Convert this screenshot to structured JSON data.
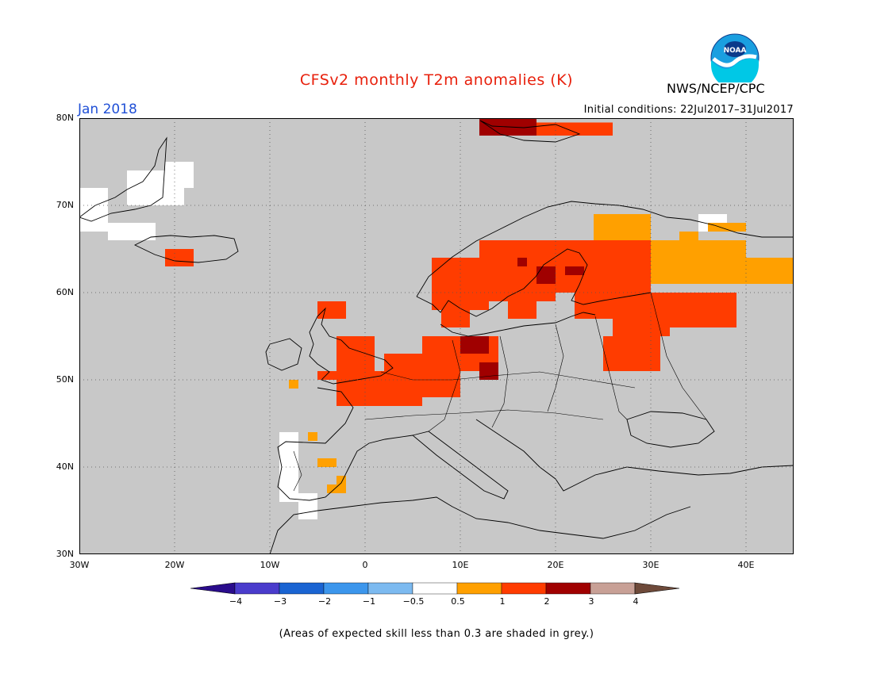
{
  "header": {
    "title": "CFSv2 monthly T2m anomalies (K)",
    "org": "NWS/NCEP/CPC",
    "month": "Jan 2018",
    "initial_conditions": "Initial conditions: 22Jul2017–31Jul2017",
    "logo_text": "NOAA"
  },
  "colors": {
    "title": "#e8200c",
    "month": "#1f4fd6",
    "ocean_land_grey": "#c8c8c8",
    "low_skill_white": "#ffffff"
  },
  "axes": {
    "lat_labels": [
      "80N",
      "70N",
      "60N",
      "50N",
      "40N",
      "30N"
    ],
    "lon_labels": [
      "30W",
      "20W",
      "10W",
      "0",
      "10E",
      "20E",
      "30E",
      "40E"
    ],
    "lon_range": [
      -30,
      45
    ],
    "lat_range": [
      30,
      80
    ],
    "grid": "dotted"
  },
  "colorbar": {
    "labels": [
      "−4",
      "−3",
      "−2",
      "−1",
      "−0.5",
      "0.5",
      "1",
      "2",
      "3",
      "4"
    ],
    "bins": [
      {
        "range": "< -4",
        "color": "#2a0c8c"
      },
      {
        "range": "-4 to -3",
        "color": "#4a3ccc"
      },
      {
        "range": "-3 to -2",
        "color": "#1a64d2"
      },
      {
        "range": "-2 to -1",
        "color": "#3c96ec"
      },
      {
        "range": "-1 to -0.5",
        "color": "#7cbaf0"
      },
      {
        "range": "-0.5 to 0.5",
        "color": "#ffffff"
      },
      {
        "range": "0.5 to 1",
        "color": "#ffa000"
      },
      {
        "range": "1 to 2",
        "color": "#ff3c00"
      },
      {
        "range": "2 to 3",
        "color": "#a00000"
      },
      {
        "range": "3 to 4",
        "color": "#c8a096"
      },
      {
        "range": "> 4",
        "color": "#6e4a3a"
      }
    ]
  },
  "anomaly_regions": [
    {
      "name": "svalbard",
      "level": "2",
      "cells": [
        [
          12,
          79
        ],
        [
          14,
          79
        ],
        [
          16,
          79
        ]
      ]
    },
    {
      "name": "svalbard",
      "level": "1",
      "cells": [
        [
          18,
          79
        ],
        [
          20,
          79
        ],
        [
          22,
          79
        ],
        [
          24,
          78
        ]
      ]
    },
    {
      "name": "scandinavia",
      "level": "1",
      "cells": []
    },
    {
      "name": "west-europe",
      "level": "1",
      "cells": []
    },
    {
      "name": "russia-east",
      "level": "0.5",
      "cells": []
    }
  ],
  "footer": {
    "note": "(Areas of expected skill less than 0.3 are shaded in grey.)"
  }
}
